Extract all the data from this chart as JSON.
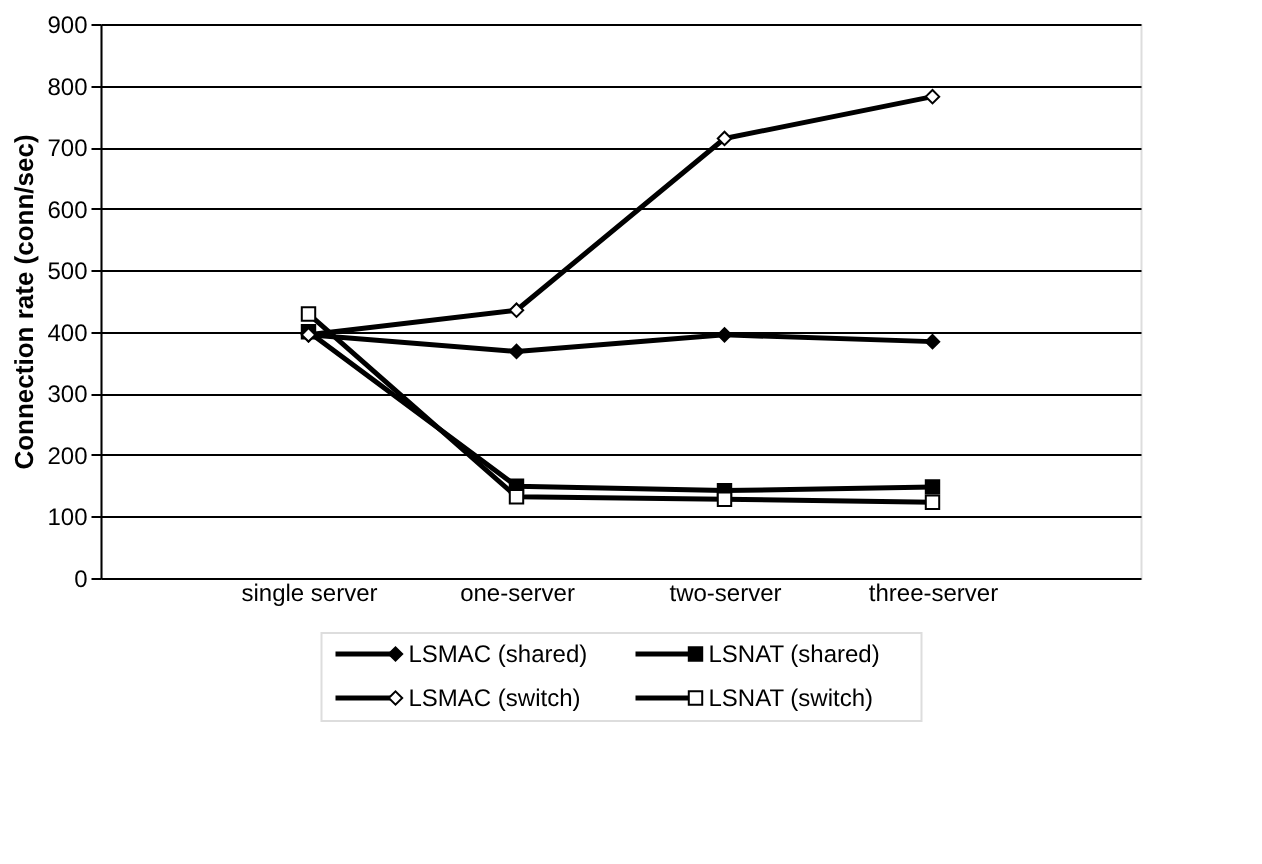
{
  "chart_data": {
    "type": "line",
    "ylabel": "Connection rate (conn/sec)",
    "categories": [
      "single server",
      "one-server",
      "two-server",
      "three-server"
    ],
    "series": [
      {
        "name": "LSMAC (shared)",
        "color": "#000000",
        "marker": "diamond",
        "values": [
          395,
          368,
          395,
          384
        ]
      },
      {
        "name": "LSNAT (shared)",
        "color": "#000000",
        "marker": "square",
        "values": [
          400,
          149,
          142,
          148
        ]
      },
      {
        "name": "LSMAC (switch)",
        "color": "#ffffff",
        "marker": "diamond",
        "values": [
          395,
          435,
          714,
          782
        ]
      },
      {
        "name": "LSNAT (switch)",
        "color": "#ffffff",
        "marker": "square",
        "values": [
          429,
          132,
          128,
          123
        ]
      }
    ],
    "ylim": [
      0,
      900
    ],
    "yticks": [
      0,
      100,
      200,
      300,
      400,
      500,
      600,
      700,
      800,
      900
    ],
    "grid": "y",
    "legend": "bottom",
    "line_style": "solid"
  }
}
